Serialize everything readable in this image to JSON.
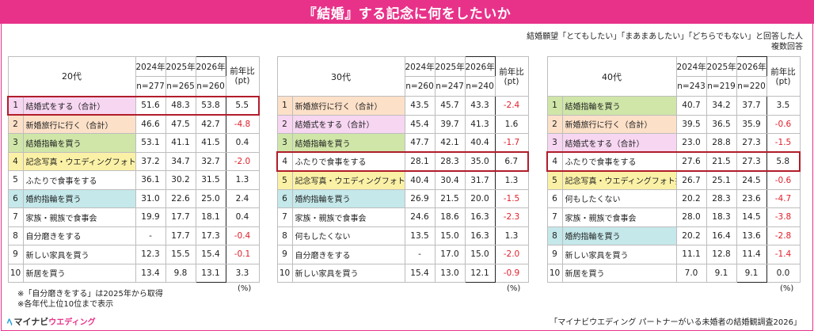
{
  "banner": {
    "title": "『結婚』する記念に何をしたいか"
  },
  "note": {
    "line1": "結婚願望「とてもしたい」「まあまあしたい」「どちらでもない」と回答した人",
    "line2": "複数回答"
  },
  "colors": {
    "pink": "#f7d6f2",
    "peach": "#fce0c8",
    "green": "#cfe6a8",
    "yellow": "#fbf1a6",
    "white": "#ffffff",
    "teal": "#c5e8ea",
    "negative": "#e0202b",
    "highlight": "#b11d2a"
  },
  "headers": {
    "y1": "2024年",
    "y2": "2025年",
    "y3": "2026年",
    "change": "前年比\n(pt)"
  },
  "tables": [
    {
      "age": "20代",
      "n1": "n=277",
      "n2": "n=265",
      "n3": "n=260",
      "rows": [
        {
          "rank": "1",
          "item": "結婚式をする（合計）",
          "v1": "51.6",
          "v2": "48.3",
          "v3": "53.8",
          "ch": "5.5",
          "color": "pink",
          "neg": false,
          "hl": true
        },
        {
          "rank": "2",
          "item": "新婚旅行に行く（合計）",
          "v1": "46.6",
          "v2": "47.5",
          "v3": "42.7",
          "ch": "-4.8",
          "color": "peach",
          "neg": true,
          "hl": false
        },
        {
          "rank": "3",
          "item": "結婚指輪を買う",
          "v1": "53.1",
          "v2": "41.1",
          "v3": "41.5",
          "ch": "0.4",
          "color": "green",
          "neg": false,
          "hl": false
        },
        {
          "rank": "4",
          "item": "記念写真・ウエディングフォト撮影",
          "v1": "37.2",
          "v2": "34.7",
          "v3": "32.7",
          "ch": "-2.0",
          "color": "yellow",
          "neg": true,
          "hl": false
        },
        {
          "rank": "5",
          "item": "ふたりで食事をする",
          "v1": "36.1",
          "v2": "30.2",
          "v3": "31.5",
          "ch": "1.3",
          "color": "white",
          "neg": false,
          "hl": false
        },
        {
          "rank": "6",
          "item": "婚約指輪を買う",
          "v1": "31.0",
          "v2": "22.6",
          "v3": "25.0",
          "ch": "2.4",
          "color": "teal",
          "neg": false,
          "hl": false
        },
        {
          "rank": "7",
          "item": "家族・親族で食事会",
          "v1": "19.9",
          "v2": "17.7",
          "v3": "18.1",
          "ch": "0.4",
          "color": "white",
          "neg": false,
          "hl": false
        },
        {
          "rank": "8",
          "item": "自分磨きをする",
          "v1": "-",
          "v2": "17.7",
          "v3": "17.3",
          "ch": "-0.4",
          "color": "white",
          "neg": true,
          "hl": false
        },
        {
          "rank": "9",
          "item": "新しい家具を買う",
          "v1": "12.3",
          "v2": "15.5",
          "v3": "15.4",
          "ch": "-0.1",
          "color": "white",
          "neg": true,
          "hl": false
        },
        {
          "rank": "10",
          "item": "新居を買う",
          "v1": "13.4",
          "v2": "9.8",
          "v3": "13.1",
          "ch": "3.3",
          "color": "white",
          "neg": false,
          "hl": false
        }
      ]
    },
    {
      "age": "30代",
      "n1": "n=260",
      "n2": "n=247",
      "n3": "n=240",
      "rows": [
        {
          "rank": "1",
          "item": "新婚旅行に行く（合計）",
          "v1": "43.5",
          "v2": "45.7",
          "v3": "43.3",
          "ch": "-2.4",
          "color": "peach",
          "neg": true,
          "hl": false
        },
        {
          "rank": "2",
          "item": "結婚式をする（合計）",
          "v1": "45.4",
          "v2": "39.7",
          "v3": "41.3",
          "ch": "1.6",
          "color": "pink",
          "neg": false,
          "hl": false
        },
        {
          "rank": "3",
          "item": "結婚指輪を買う",
          "v1": "47.7",
          "v2": "42.1",
          "v3": "40.4",
          "ch": "-1.7",
          "color": "green",
          "neg": true,
          "hl": false
        },
        {
          "rank": "4",
          "item": "ふたりで食事をする",
          "v1": "28.1",
          "v2": "28.3",
          "v3": "35.0",
          "ch": "6.7",
          "color": "white",
          "neg": false,
          "hl": true
        },
        {
          "rank": "5",
          "item": "記念写真・ウエディングフォト撮影",
          "v1": "40.4",
          "v2": "30.4",
          "v3": "31.7",
          "ch": "1.3",
          "color": "yellow",
          "neg": false,
          "hl": false
        },
        {
          "rank": "6",
          "item": "婚約指輪を買う",
          "v1": "26.9",
          "v2": "21.5",
          "v3": "20.0",
          "ch": "-1.5",
          "color": "teal",
          "neg": true,
          "hl": false
        },
        {
          "rank": "7",
          "item": "家族・親族で食事会",
          "v1": "24.6",
          "v2": "18.6",
          "v3": "16.3",
          "ch": "-2.3",
          "color": "white",
          "neg": true,
          "hl": false
        },
        {
          "rank": "8",
          "item": "何もしたくない",
          "v1": "13.5",
          "v2": "15.0",
          "v3": "16.3",
          "ch": "1.3",
          "color": "white",
          "neg": false,
          "hl": false
        },
        {
          "rank": "9",
          "item": "自分磨きをする",
          "v1": "-",
          "v2": "17.0",
          "v3": "15.0",
          "ch": "-2.0",
          "color": "white",
          "neg": true,
          "hl": false
        },
        {
          "rank": "10",
          "item": "新しい家具を買う",
          "v1": "15.4",
          "v2": "13.0",
          "v3": "12.1",
          "ch": "-0.9",
          "color": "white",
          "neg": true,
          "hl": false
        }
      ]
    },
    {
      "age": "40代",
      "n1": "n=243",
      "n2": "n=219",
      "n3": "n=220",
      "rows": [
        {
          "rank": "1",
          "item": "結婚指輪を買う",
          "v1": "40.7",
          "v2": "34.2",
          "v3": "37.7",
          "ch": "3.5",
          "color": "green",
          "neg": false,
          "hl": false
        },
        {
          "rank": "2",
          "item": "新婚旅行に行く（合計）",
          "v1": "39.5",
          "v2": "36.5",
          "v3": "35.9",
          "ch": "-0.6",
          "color": "peach",
          "neg": true,
          "hl": false
        },
        {
          "rank": "3",
          "item": "結婚式をする（合計）",
          "v1": "23.0",
          "v2": "28.8",
          "v3": "27.3",
          "ch": "-1.5",
          "color": "pink",
          "neg": true,
          "hl": false
        },
        {
          "rank": "4",
          "item": "ふたりで食事をする",
          "v1": "27.6",
          "v2": "21.5",
          "v3": "27.3",
          "ch": "5.8",
          "color": "white",
          "neg": false,
          "hl": true
        },
        {
          "rank": "5",
          "item": "記念写真・ウエディングフォト撮影",
          "v1": "26.7",
          "v2": "25.1",
          "v3": "24.5",
          "ch": "-0.6",
          "color": "yellow",
          "neg": true,
          "hl": false
        },
        {
          "rank": "6",
          "item": "何もしたくない",
          "v1": "20.2",
          "v2": "28.3",
          "v3": "23.6",
          "ch": "-4.7",
          "color": "white",
          "neg": true,
          "hl": false
        },
        {
          "rank": "7",
          "item": "家族・親族で食事会",
          "v1": "28.0",
          "v2": "18.3",
          "v3": "14.5",
          "ch": "-3.8",
          "color": "white",
          "neg": true,
          "hl": false
        },
        {
          "rank": "8",
          "item": "婚約指輪を買う",
          "v1": "20.2",
          "v2": "16.4",
          "v3": "13.6",
          "ch": "-2.8",
          "color": "teal",
          "neg": true,
          "hl": false
        },
        {
          "rank": "9",
          "item": "新しい家具を買う",
          "v1": "11.1",
          "v2": "12.8",
          "v3": "11.4",
          "ch": "-1.4",
          "color": "white",
          "neg": true,
          "hl": false
        },
        {
          "rank": "10",
          "item": "新居を買う",
          "v1": "7.0",
          "v2": "9.1",
          "v3": "9.1",
          "ch": "0.0",
          "color": "white",
          "neg": false,
          "hl": false
        }
      ]
    }
  ],
  "unit": "(%)",
  "footnotes": {
    "line1": "※「自分磨きをする」は2025年から取得",
    "line2": "※各年代上位10位まで表示"
  },
  "logo": {
    "icon": "mynavi-logo-mark",
    "text1": "マイナビ",
    "text2": "ウエディング"
  },
  "source": "「マイナビウエディング パートナーがいる未婚者の結婚観調査2026」"
}
